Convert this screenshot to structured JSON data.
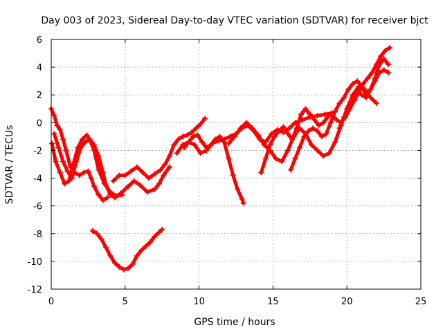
{
  "chart_data": {
    "type": "scatter",
    "title": "Day 003 of 2023, Sidereal Day-to-day VTEC variation (SDTVAR) for receiver bjct",
    "xlabel": "GPS time / hours",
    "ylabel": "SDTVAR / TECUs",
    "xlim": [
      0,
      25
    ],
    "ylim": [
      -12,
      6
    ],
    "xticks": [
      0,
      5,
      10,
      15,
      20,
      25
    ],
    "yticks": [
      -12,
      -10,
      -8,
      -6,
      -4,
      -2,
      0,
      2,
      4,
      6
    ],
    "grid": true,
    "marker": "+",
    "color": "#ff0000",
    "series": [
      {
        "x": [
          0.0,
          0.2,
          0.4,
          0.6,
          0.8,
          1.0,
          1.3,
          1.6,
          1.9,
          2.2,
          2.5,
          2.7,
          2.9,
          3.2,
          3.5,
          3.8
        ],
        "y": [
          1.0,
          0.5,
          -0.2,
          -0.5,
          -1.2,
          -2.0,
          -3.2,
          -3.6,
          -3.8,
          -3.6,
          -3.5,
          -4.0,
          -4.6,
          -5.2,
          -5.6,
          -5.4
        ]
      },
      {
        "x": [
          0.05,
          0.3,
          0.6,
          0.9,
          1.2,
          1.5,
          1.8,
          2.1,
          2.4,
          2.6,
          2.9,
          3.2,
          3.6,
          4.0,
          4.4,
          4.8
        ],
        "y": [
          -1.5,
          -2.8,
          -3.6,
          -4.4,
          -4.2,
          -3.0,
          -1.8,
          -1.2,
          -0.9,
          -1.2,
          -2.0,
          -3.4,
          -4.4,
          -5.0,
          -5.3,
          -5.2
        ]
      },
      {
        "x": [
          0.2,
          0.5,
          0.8,
          1.1,
          1.4,
          1.7,
          2.0,
          2.3,
          2.6,
          2.9,
          3.2,
          3.5,
          3.7,
          4.0,
          4.3,
          4.7,
          5.2,
          5.6,
          6.0,
          6.5,
          7.0,
          7.3,
          7.6,
          8.0
        ],
        "y": [
          -0.8,
          -1.8,
          -2.8,
          -3.5,
          -4.0,
          -2.8,
          -1.8,
          -1.4,
          -1.2,
          -1.6,
          -2.4,
          -3.6,
          -4.5,
          -5.2,
          -5.4,
          -5.1,
          -4.6,
          -4.2,
          -4.5,
          -5.0,
          -4.8,
          -4.4,
          -3.8,
          -3.2
        ]
      },
      {
        "x": [
          2.8,
          3.1,
          3.4,
          3.7,
          4.0,
          4.3,
          4.6,
          4.9,
          5.2,
          5.5,
          5.8,
          6.1,
          6.4,
          6.7,
          7.0,
          7.3,
          7.5
        ],
        "y": [
          -7.8,
          -8.0,
          -8.4,
          -9.0,
          -9.6,
          -10.1,
          -10.4,
          -10.6,
          -10.5,
          -10.2,
          -9.6,
          -9.2,
          -8.9,
          -8.6,
          -8.2,
          -7.9,
          -7.7
        ]
      },
      {
        "x": [
          4.2,
          4.6,
          5.0,
          5.4,
          5.8,
          6.2,
          6.6,
          7.0,
          7.4,
          7.7,
          8.0,
          8.3,
          8.6,
          8.9,
          9.2,
          9.5,
          9.8,
          10.1,
          10.4
        ],
        "y": [
          -4.2,
          -3.8,
          -3.8,
          -3.5,
          -3.2,
          -3.6,
          -4.0,
          -3.7,
          -3.4,
          -3.0,
          -2.4,
          -1.6,
          -1.2,
          -1.0,
          -0.9,
          -0.7,
          -0.4,
          -0.1,
          0.3
        ]
      },
      {
        "x": [
          9.0,
          9.3,
          9.6,
          9.9,
          10.2,
          10.5,
          10.8,
          11.1,
          11.4,
          11.7,
          12.0,
          12.3,
          12.6,
          12.9,
          13.0
        ],
        "y": [
          -1.8,
          -1.4,
          -1.0,
          -0.9,
          -1.4,
          -1.8,
          -1.6,
          -1.2,
          -1.0,
          -1.4,
          -2.6,
          -3.8,
          -4.8,
          -5.5,
          -5.8
        ]
      },
      {
        "x": [
          8.5,
          8.9,
          9.3,
          9.7,
          10.1,
          10.5,
          10.9,
          11.3,
          11.7,
          12.1,
          12.5,
          12.9,
          13.3,
          13.7,
          14.1,
          14.5,
          14.9,
          15.3,
          15.7,
          16.1,
          16.5,
          17.0,
          17.5,
          18.0,
          18.5,
          19.0
        ],
        "y": [
          -2.2,
          -1.6,
          -1.4,
          -1.6,
          -2.2,
          -2.0,
          -1.5,
          -1.3,
          -1.2,
          -1.0,
          -0.8,
          -0.4,
          -0.2,
          -0.6,
          -1.2,
          -1.4,
          -0.8,
          -0.5,
          -0.7,
          -0.4,
          0.0,
          0.2,
          0.4,
          0.5,
          0.6,
          0.7
        ]
      },
      {
        "x": [
          12.0,
          12.4,
          12.8,
          13.2,
          13.6,
          14.0,
          14.4,
          14.8,
          15.2,
          15.6,
          16.0,
          16.4,
          16.8,
          17.2,
          17.6,
          18.0,
          18.4,
          18.8,
          19.2,
          19.6,
          20.0,
          20.4,
          20.8,
          21.2,
          21.6,
          22.0
        ],
        "y": [
          -1.5,
          -1.0,
          -0.4,
          0.0,
          -0.4,
          -0.9,
          -1.6,
          -2.0,
          -2.6,
          -2.8,
          -2.0,
          -1.0,
          -0.4,
          -0.8,
          -1.6,
          -2.0,
          -2.4,
          -2.2,
          -1.4,
          -0.2,
          1.0,
          2.0,
          2.6,
          2.4,
          1.8,
          1.4
        ]
      },
      {
        "x": [
          14.2,
          14.5,
          14.8,
          15.1,
          15.4,
          15.7,
          16.0,
          16.3,
          16.6,
          16.9,
          17.2,
          17.5,
          17.8,
          18.1,
          18.4,
          18.7,
          19.0,
          19.3,
          19.6,
          19.9,
          20.2,
          20.5,
          20.8,
          21.1,
          21.4,
          21.7,
          22.0,
          22.3,
          22.6,
          22.9
        ],
        "y": [
          -3.6,
          -2.6,
          -1.6,
          -1.0,
          -0.6,
          -0.3,
          -0.8,
          -1.2,
          -0.4,
          0.6,
          1.0,
          0.6,
          0.2,
          -0.2,
          0.0,
          0.4,
          0.6,
          0.2,
          0.0,
          0.4,
          1.0,
          1.6,
          2.2,
          2.8,
          3.2,
          3.6,
          4.2,
          4.8,
          5.2,
          5.4
        ]
      },
      {
        "x": [
          16.2,
          16.5,
          16.8,
          17.1,
          17.4,
          17.7,
          18.0,
          18.3,
          18.6,
          18.9,
          19.2,
          19.5,
          19.8,
          20.1,
          20.4,
          20.7,
          21.0,
          21.3,
          21.6,
          21.9,
          22.2,
          22.5,
          22.8
        ],
        "y": [
          -3.4,
          -2.6,
          -1.8,
          -1.0,
          -0.6,
          -0.4,
          -0.6,
          -1.0,
          -0.8,
          0.0,
          0.8,
          1.4,
          1.8,
          2.4,
          2.8,
          3.0,
          2.6,
          2.0,
          2.4,
          3.2,
          4.2,
          4.6,
          4.2
        ]
      },
      {
        "x": [
          19.5,
          19.8,
          20.1,
          20.4,
          20.7,
          21.0,
          21.3,
          21.6,
          21.9,
          22.2,
          22.5,
          22.8
        ],
        "y": [
          -0.4,
          0.4,
          1.2,
          1.8,
          2.2,
          2.0,
          1.8,
          2.4,
          3.0,
          3.6,
          3.8,
          3.6
        ]
      }
    ]
  }
}
